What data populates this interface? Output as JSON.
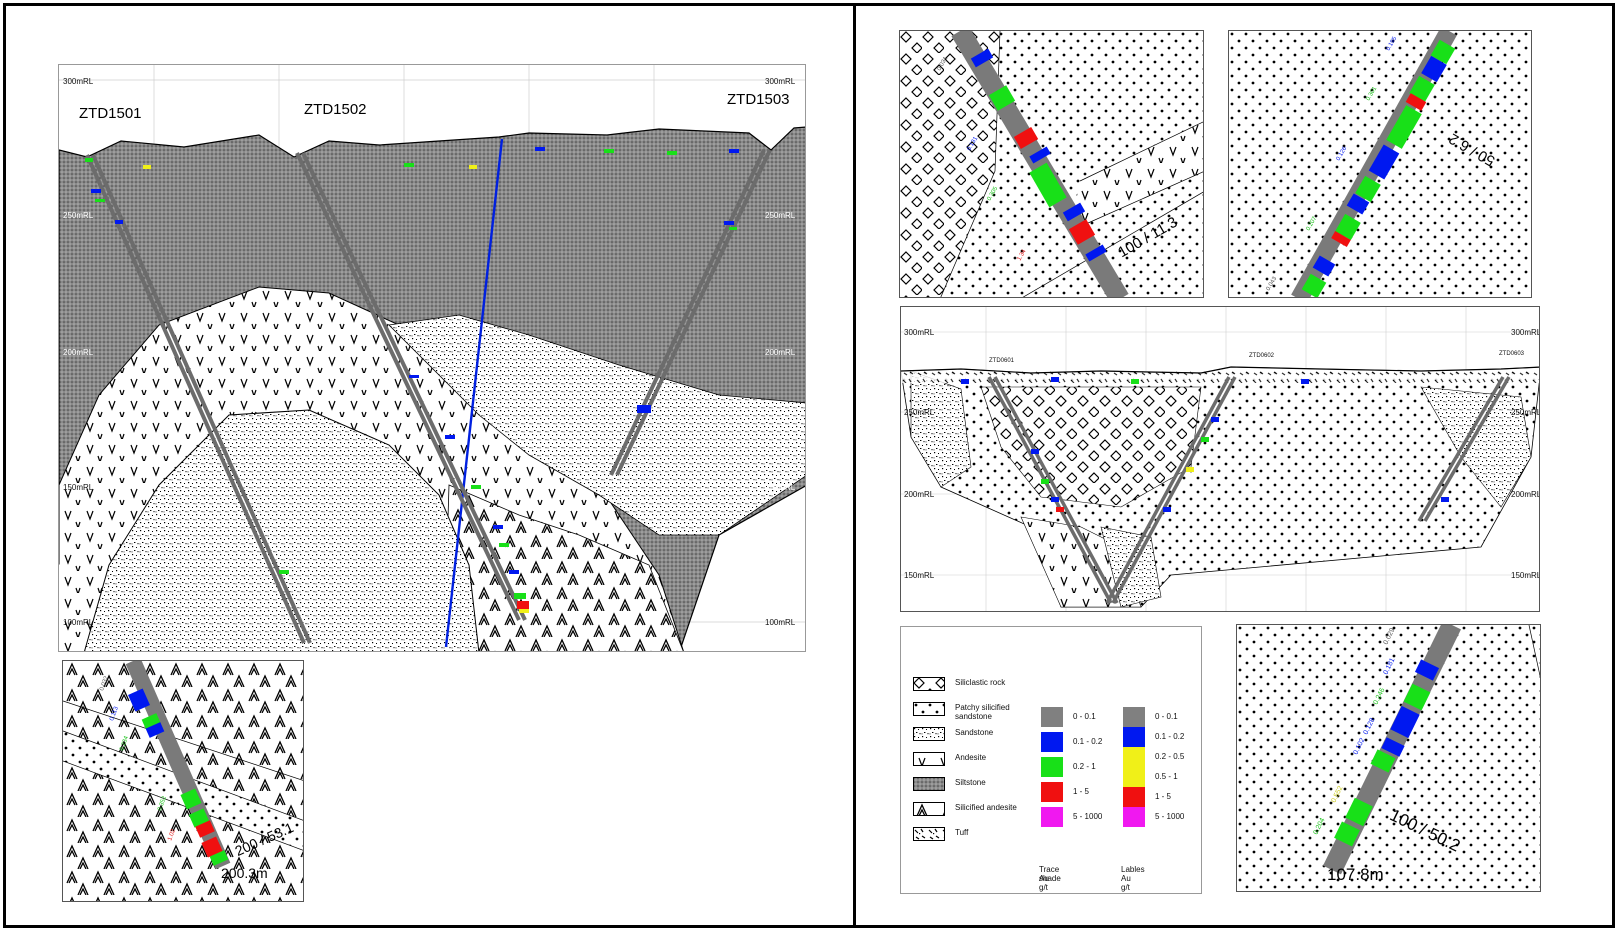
{
  "main_section": {
    "rl_labels": [
      "300mRL",
      "250mRL",
      "200mRL",
      "150mRL",
      "100mRL"
    ],
    "holes": [
      "ZTD1501",
      "ZTD1502",
      "ZTD1503"
    ]
  },
  "inset_section": {
    "rl_labels": [
      "300mRL",
      "250mRL",
      "200mRL",
      "150mRL"
    ],
    "holes": [
      "ZTD0601",
      "ZTD0602",
      "ZTD0603"
    ]
  },
  "zoom_panels": {
    "top_left_annotation": "100 / 11.3",
    "top_right_annotation": "50 / 6.2",
    "bottom_right_annotation": "100 / 50.2",
    "bottom_right_depth": "107.8m",
    "bottom_left_annotation": "200 / 53.1",
    "bottom_left_depth": "200.3m"
  },
  "legend": {
    "lithology": [
      {
        "label": "Siliclastic rock",
        "icon": "diamond-pattern-icon"
      },
      {
        "label": "Patchy silicified sandstone",
        "icon": "square-dot-pattern-icon"
      },
      {
        "label": "Sandstone",
        "icon": "speckle-pattern-icon"
      },
      {
        "label": "Andesite",
        "icon": "v-pattern-icon"
      },
      {
        "label": "Siltstone",
        "icon": "dense-dot-pattern-icon"
      },
      {
        "label": "Silicified andesite",
        "icon": "chevron-pattern-icon"
      },
      {
        "label": "Tuff",
        "icon": "tuff-pattern-icon"
      }
    ],
    "trace_shade": {
      "title": "Trace shade",
      "unit": "Au g/t",
      "items": [
        {
          "label": "0 - 0.1",
          "color": "#808080"
        },
        {
          "label": "0.1 - 0.2",
          "color": "#0018f0"
        },
        {
          "label": "0.2 - 1",
          "color": "#18e018"
        },
        {
          "label": "1 - 5",
          "color": "#f01010"
        },
        {
          "label": "5 - 1000",
          "color": "#f018f0"
        }
      ]
    },
    "labels": {
      "title": "Lables",
      "unit": "Au g/t",
      "items": [
        {
          "label": "0 - 0.1",
          "color": "#808080"
        },
        {
          "label": "0.1 - 0.2",
          "color": "#0018f0"
        },
        {
          "label": "0.2 - 0.5",
          "color": "#f0f018"
        },
        {
          "label": "0.5 - 1",
          "color": "#f0f018"
        },
        {
          "label": "1 - 5",
          "color": "#f01010"
        },
        {
          "label": "5 - 1000",
          "color": "#f018f0"
        }
      ]
    }
  }
}
